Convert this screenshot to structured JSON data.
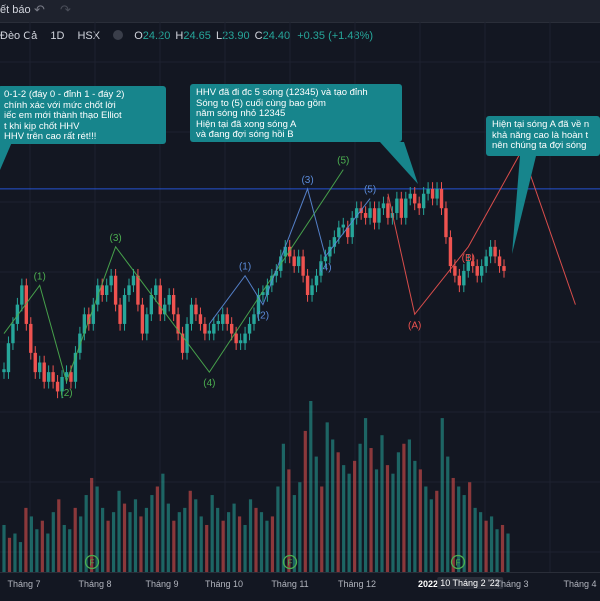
{
  "topbar": {
    "title": "ết báo",
    "undo_icon": "undo-icon"
  },
  "legend": {
    "symbol": "Đèo Cả",
    "interval": "1D",
    "exchange": "HSX",
    "open_label": "O",
    "open": "24.20",
    "high_label": "H",
    "high": "24.65",
    "low_label": "L",
    "low": "23.90",
    "close_label": "C",
    "close": "24.40",
    "change": "+0.35 (+1.48%)"
  },
  "colors": {
    "up": "#26a69a",
    "down": "#ef5350",
    "green_wave": "#4caf50",
    "blue_wave": "#5b8bd9",
    "red_wave": "#ef5350",
    "callout": "#17858c",
    "resistance": "#2962ff"
  },
  "callouts": [
    {
      "lines": [
        "0-1-2 (đáy 0 - đỉnh 1 - đáy 2)",
        "chính xác với mức chốt lời",
        "iếc em mới thành thạo Elliot",
        "t khi kịp chốt HHV",
        "HHV trên cao rất rét!!!"
      ]
    },
    {
      "lines": [
        "HHV đã đi đc 5 sóng (12345) và tạo đỉnh",
        "Sóng to (5) cuối cùng bao gồm",
        "năm sóng nhỏ 12345",
        "Hiện tại đã xong sóng A",
        "và đang đợi sóng hồi B"
      ]
    },
    {
      "lines": [
        "Hiện tại sóng A đã về n",
        "khả năng cao là hoàn t",
        "nên chúng ta đợi sóng"
      ]
    }
  ],
  "xaxis": [
    {
      "label": "Tháng 7",
      "style": ""
    },
    {
      "label": "Tháng 8",
      "style": ""
    },
    {
      "label": "Tháng 9",
      "style": ""
    },
    {
      "label": "Tháng 10",
      "style": ""
    },
    {
      "label": "Tháng 11",
      "style": ""
    },
    {
      "label": "Tháng 12",
      "style": ""
    },
    {
      "label": "2022",
      "style": "bold"
    },
    {
      "label": "10 Tháng 2 '22",
      "style": "hl"
    },
    {
      "label": "Tháng 3",
      "style": ""
    },
    {
      "label": "Tháng 4",
      "style": ""
    }
  ],
  "chart_data": {
    "type": "candlestick",
    "symbol": "Đèo Cả",
    "interval": "1D",
    "resistance_level": 50,
    "price_range": [
      0,
      56
    ],
    "candles_shape": [
      12,
      18,
      22,
      26,
      30,
      22,
      16,
      12,
      14,
      10,
      12,
      10,
      8,
      11,
      12,
      10,
      16,
      20,
      24,
      22,
      26,
      30,
      28,
      30,
      32,
      26,
      22,
      28,
      30,
      32,
      26,
      20,
      24,
      28,
      30,
      24,
      26,
      28,
      24,
      20,
      16,
      22,
      26,
      24,
      22,
      20,
      20,
      22,
      22,
      24,
      22,
      20,
      18,
      18,
      20,
      22,
      24,
      28,
      28,
      30,
      32,
      33,
      36,
      38,
      36,
      34,
      36,
      32,
      28,
      30,
      32,
      35,
      36,
      38,
      40,
      42,
      42,
      40,
      44,
      46,
      45,
      44,
      46,
      43,
      46,
      47,
      44,
      45,
      48,
      44,
      48,
      49,
      47,
      46,
      49,
      50,
      48,
      50,
      46,
      40,
      34,
      32,
      30,
      33,
      35,
      34,
      32,
      34,
      36,
      38,
      36,
      34,
      33
    ],
    "waves": {
      "green": {
        "labels": [
          "(1)",
          "(2)",
          "(3)",
          "(4)",
          "(5)"
        ],
        "points": [
          [
            0,
            20
          ],
          [
            8,
            30
          ],
          [
            14,
            10
          ],
          [
            25,
            38
          ],
          [
            46,
            12
          ],
          [
            76,
            54
          ]
        ]
      },
      "blue": {
        "labels": [
          "(1)",
          "(2)",
          "(3)",
          "(4)",
          "(5)"
        ],
        "points": [
          [
            46,
            22
          ],
          [
            54,
            32
          ],
          [
            58,
            26
          ],
          [
            68,
            50
          ],
          [
            72,
            36
          ],
          [
            82,
            48
          ]
        ]
      },
      "red": {
        "labels": [
          "(A)",
          "(B)"
        ],
        "points": [
          [
            86,
            49
          ],
          [
            92,
            24
          ],
          [
            104,
            38
          ],
          [
            116,
            58
          ],
          [
            128,
            26
          ]
        ]
      }
    },
    "volume_shape": [
      22,
      16,
      18,
      14,
      30,
      26,
      20,
      24,
      18,
      28,
      34,
      22,
      20,
      30,
      26,
      36,
      44,
      40,
      30,
      24,
      28,
      38,
      32,
      28,
      34,
      26,
      30,
      36,
      40,
      46,
      32,
      24,
      28,
      30,
      38,
      34,
      26,
      22,
      36,
      30,
      24,
      28,
      32,
      26,
      22,
      34,
      30,
      28,
      24,
      26,
      40,
      60,
      48,
      36,
      42,
      66,
      80,
      54,
      40,
      70,
      62,
      56,
      50,
      46,
      52,
      60,
      72,
      58,
      48,
      64,
      50,
      46,
      56,
      60,
      62,
      52,
      48,
      40,
      34,
      38,
      72,
      54,
      44,
      40,
      36,
      42,
      30,
      28,
      24,
      26,
      20,
      22,
      18
    ]
  }
}
